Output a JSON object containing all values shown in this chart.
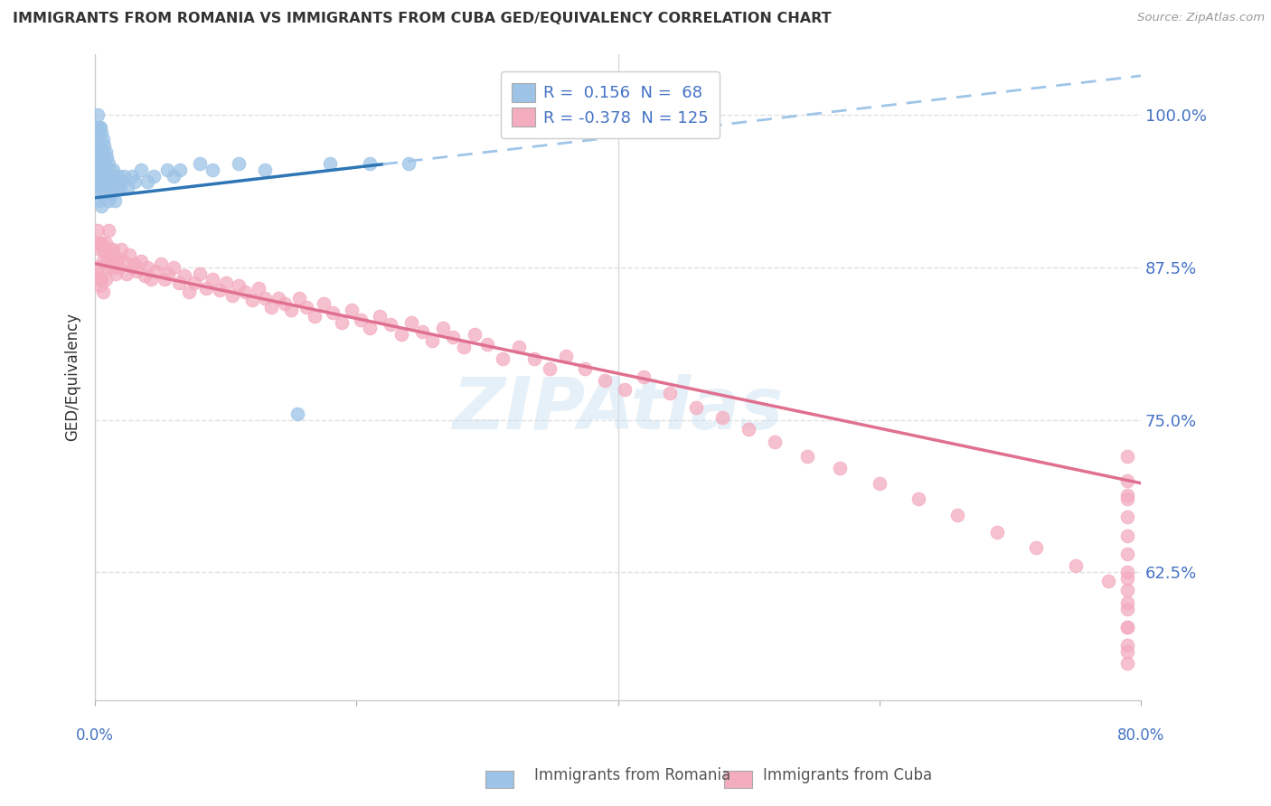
{
  "title": "IMMIGRANTS FROM ROMANIA VS IMMIGRANTS FROM CUBA GED/EQUIVALENCY CORRELATION CHART",
  "source": "Source: ZipAtlas.com",
  "ylabel": "GED/Equivalency",
  "ytick_labels": [
    "100.0%",
    "87.5%",
    "75.0%",
    "62.5%"
  ],
  "ytick_values": [
    1.0,
    0.875,
    0.75,
    0.625
  ],
  "xlim": [
    0.0,
    0.8
  ],
  "ylim": [
    0.52,
    1.05
  ],
  "romania_R": 0.156,
  "romania_N": 68,
  "cuba_R": -0.378,
  "cuba_N": 125,
  "romania_color": "#9dc3e6",
  "cuba_color": "#f4acbf",
  "romania_trend_color": "#2e75b6",
  "cuba_trend_color": "#e07090",
  "romania_trend_dash_color": "#9fc5e8",
  "background_color": "#ffffff",
  "grid_color": "#d9d9d9",
  "watermark": "ZIPAtlas",
  "romania_x": [
    0.001,
    0.001,
    0.001,
    0.002,
    0.002,
    0.002,
    0.002,
    0.002,
    0.003,
    0.003,
    0.003,
    0.003,
    0.003,
    0.004,
    0.004,
    0.004,
    0.004,
    0.005,
    0.005,
    0.005,
    0.005,
    0.005,
    0.006,
    0.006,
    0.006,
    0.006,
    0.007,
    0.007,
    0.007,
    0.008,
    0.008,
    0.008,
    0.009,
    0.009,
    0.01,
    0.01,
    0.01,
    0.011,
    0.011,
    0.012,
    0.012,
    0.013,
    0.014,
    0.015,
    0.015,
    0.016,
    0.017,
    0.018,
    0.019,
    0.02,
    0.022,
    0.025,
    0.028,
    0.03,
    0.035,
    0.04,
    0.045,
    0.055,
    0.06,
    0.065,
    0.08,
    0.09,
    0.11,
    0.13,
    0.155,
    0.18,
    0.21,
    0.24
  ],
  "romania_y": [
    0.99,
    0.975,
    0.96,
    1.0,
    0.985,
    0.97,
    0.955,
    0.94,
    0.99,
    0.975,
    0.96,
    0.945,
    0.93,
    0.99,
    0.975,
    0.96,
    0.945,
    0.985,
    0.97,
    0.955,
    0.94,
    0.925,
    0.98,
    0.965,
    0.95,
    0.935,
    0.975,
    0.96,
    0.945,
    0.97,
    0.955,
    0.94,
    0.965,
    0.95,
    0.96,
    0.945,
    0.93,
    0.955,
    0.94,
    0.95,
    0.935,
    0.945,
    0.955,
    0.945,
    0.93,
    0.945,
    0.94,
    0.95,
    0.94,
    0.945,
    0.95,
    0.94,
    0.95,
    0.945,
    0.955,
    0.945,
    0.95,
    0.955,
    0.95,
    0.955,
    0.96,
    0.955,
    0.96,
    0.955,
    0.755,
    0.96,
    0.96,
    0.96
  ],
  "cuba_x": [
    0.001,
    0.001,
    0.002,
    0.002,
    0.003,
    0.003,
    0.004,
    0.004,
    0.005,
    0.005,
    0.006,
    0.006,
    0.007,
    0.008,
    0.008,
    0.009,
    0.01,
    0.01,
    0.011,
    0.012,
    0.013,
    0.014,
    0.015,
    0.016,
    0.017,
    0.018,
    0.02,
    0.022,
    0.024,
    0.026,
    0.028,
    0.03,
    0.032,
    0.035,
    0.038,
    0.04,
    0.043,
    0.046,
    0.05,
    0.053,
    0.056,
    0.06,
    0.064,
    0.068,
    0.072,
    0.076,
    0.08,
    0.085,
    0.09,
    0.095,
    0.1,
    0.105,
    0.11,
    0.115,
    0.12,
    0.125,
    0.13,
    0.135,
    0.14,
    0.145,
    0.15,
    0.156,
    0.162,
    0.168,
    0.175,
    0.182,
    0.189,
    0.196,
    0.203,
    0.21,
    0.218,
    0.226,
    0.234,
    0.242,
    0.25,
    0.258,
    0.266,
    0.274,
    0.282,
    0.29,
    0.3,
    0.312,
    0.324,
    0.336,
    0.348,
    0.36,
    0.375,
    0.39,
    0.405,
    0.42,
    0.44,
    0.46,
    0.48,
    0.5,
    0.52,
    0.545,
    0.57,
    0.6,
    0.63,
    0.66,
    0.69,
    0.72,
    0.75,
    0.775,
    0.79,
    0.79,
    0.79,
    0.79,
    0.79,
    0.79,
    0.79,
    0.79,
    0.79,
    0.79,
    0.79,
    0.79,
    0.79,
    0.79,
    0.79,
    0.79,
    0.79
  ],
  "cuba_y": [
    0.895,
    0.87,
    0.905,
    0.875,
    0.895,
    0.865,
    0.89,
    0.86,
    0.895,
    0.865,
    0.88,
    0.855,
    0.888,
    0.895,
    0.865,
    0.88,
    0.905,
    0.875,
    0.89,
    0.885,
    0.875,
    0.89,
    0.88,
    0.87,
    0.882,
    0.875,
    0.89,
    0.88,
    0.87,
    0.885,
    0.875,
    0.878,
    0.872,
    0.88,
    0.868,
    0.875,
    0.865,
    0.872,
    0.878,
    0.865,
    0.87,
    0.875,
    0.862,
    0.868,
    0.855,
    0.862,
    0.87,
    0.858,
    0.865,
    0.856,
    0.862,
    0.852,
    0.86,
    0.855,
    0.848,
    0.858,
    0.85,
    0.842,
    0.85,
    0.845,
    0.84,
    0.85,
    0.842,
    0.835,
    0.845,
    0.838,
    0.83,
    0.84,
    0.832,
    0.825,
    0.835,
    0.828,
    0.82,
    0.83,
    0.822,
    0.815,
    0.825,
    0.818,
    0.81,
    0.82,
    0.812,
    0.8,
    0.81,
    0.8,
    0.792,
    0.802,
    0.792,
    0.782,
    0.775,
    0.785,
    0.772,
    0.76,
    0.752,
    0.742,
    0.732,
    0.72,
    0.71,
    0.698,
    0.685,
    0.672,
    0.658,
    0.645,
    0.63,
    0.618,
    0.688,
    0.72,
    0.7,
    0.685,
    0.67,
    0.655,
    0.64,
    0.625,
    0.61,
    0.595,
    0.58,
    0.565,
    0.55,
    0.62,
    0.6,
    0.58,
    0.56
  ]
}
